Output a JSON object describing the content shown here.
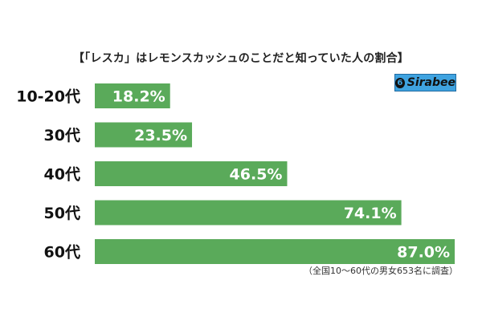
{
  "chart_data": {
    "type": "bar",
    "orientation": "horizontal",
    "title": "【「レスカ」はレモンスカッシュのことだと知っていた人の割合】",
    "categories": [
      "10-20代",
      "30代",
      "40代",
      "50代",
      "60代"
    ],
    "values": [
      18.2,
      23.5,
      46.5,
      74.1,
      87.0
    ],
    "data_labels": [
      "18.2%",
      "23.5%",
      "46.5%",
      "74.1%",
      "87.0%"
    ],
    "xlim": [
      0,
      100
    ],
    "grid": false,
    "legend": "none",
    "bar_color": "#5aaa5a",
    "label_color": "#ffffff"
  },
  "footnote": "（全国10〜60代の男女653名に調査）",
  "logo": {
    "text": "Sirabee",
    "mark": "6"
  }
}
